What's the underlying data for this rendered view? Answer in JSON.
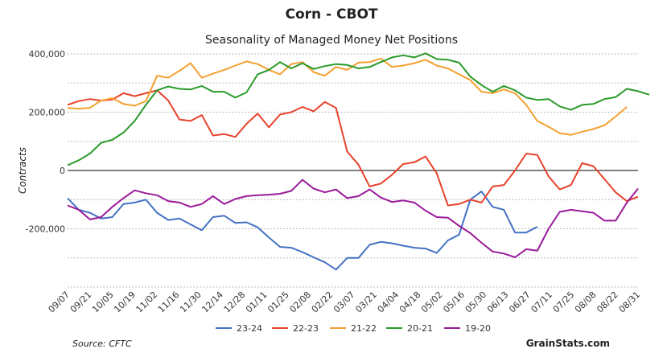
{
  "chart_data": {
    "type": "line",
    "title": "Corn - CBOT",
    "subtitle": "Seasonality of Managed Money Net Positions",
    "ylabel": "Contracts",
    "xlabel": "",
    "ylim": [
      -400000,
      400000
    ],
    "y_ticks": [
      400000,
      200000,
      0,
      -200000
    ],
    "y_tick_labels": [
      "400,000",
      "200,000",
      "0",
      "-200,000"
    ],
    "x_tick_labels": [
      "09/07",
      "09/21",
      "10/05",
      "10/19",
      "11/02",
      "11/16",
      "11/30",
      "12/14",
      "12/28",
      "01/11",
      "01/25",
      "02/08",
      "02/22",
      "03/07",
      "03/21",
      "04/04",
      "04/18",
      "05/02",
      "05/16",
      "05/30",
      "06/13",
      "06/27",
      "07/11",
      "07/25",
      "08/08",
      "08/22",
      "08/31"
    ],
    "x_count": 52,
    "series": [
      {
        "name": "23-24",
        "color": "#4472c4",
        "values": [
          -95000,
          -135000,
          -145000,
          -165000,
          -160000,
          -115000,
          -110000,
          -100000,
          -145000,
          -170000,
          -165000,
          -185000,
          -205000,
          -160000,
          -155000,
          -180000,
          -178000,
          -195000,
          -230000,
          -262000,
          -265000,
          -280000,
          -298000,
          -315000,
          -340000,
          -300000,
          -300000,
          -255000,
          -245000,
          -250000,
          -258000,
          -265000,
          -268000,
          -283000,
          -240000,
          -220000,
          -100000,
          -72000,
          -125000,
          -135000,
          -213000,
          -213000,
          -193000
        ]
      },
      {
        "name": "22-23",
        "color": "#e8422c",
        "values": [
          225000,
          238000,
          245000,
          240000,
          243000,
          265000,
          255000,
          265000,
          275000,
          240000,
          175000,
          170000,
          190000,
          120000,
          125000,
          115000,
          160000,
          195000,
          148000,
          192000,
          200000,
          218000,
          203000,
          235000,
          215000,
          65000,
          20000,
          -55000,
          -45000,
          -15000,
          22000,
          28000,
          48000,
          -10000,
          -120000,
          -115000,
          -100000,
          -110000,
          -55000,
          -50000,
          0,
          58000,
          53000,
          -20000,
          -65000,
          -50000,
          25000,
          15000,
          -30000,
          -75000,
          -105000,
          -90000
        ]
      },
      {
        "name": "21-22",
        "color": "#f5a030",
        "values": [
          215000,
          212000,
          215000,
          240000,
          248000,
          228000,
          222000,
          238000,
          325000,
          318000,
          342000,
          368000,
          318000,
          332000,
          345000,
          360000,
          374000,
          365000,
          345000,
          330000,
          365000,
          372000,
          337000,
          325000,
          355000,
          345000,
          370000,
          372000,
          384000,
          355000,
          360000,
          368000,
          380000,
          360000,
          350000,
          330000,
          310000,
          270000,
          265000,
          278000,
          265000,
          225000,
          170000,
          150000,
          128000,
          122000,
          133000,
          142000,
          155000,
          185000,
          218000
        ]
      },
      {
        "name": "20-21",
        "color": "#2a9a2a",
        "values": [
          18000,
          35000,
          58000,
          95000,
          105000,
          130000,
          170000,
          225000,
          275000,
          288000,
          280000,
          278000,
          290000,
          270000,
          270000,
          250000,
          268000,
          330000,
          345000,
          372000,
          350000,
          368000,
          348000,
          358000,
          365000,
          362000,
          350000,
          355000,
          372000,
          388000,
          395000,
          388000,
          402000,
          382000,
          380000,
          370000,
          322000,
          293000,
          270000,
          290000,
          275000,
          250000,
          242000,
          245000,
          220000,
          208000,
          225000,
          228000,
          245000,
          252000,
          280000,
          272000,
          260000
        ]
      },
      {
        "name": "19-20",
        "color": "#9a1a9a",
        "values": [
          -120000,
          -135000,
          -168000,
          -160000,
          -125000,
          -95000,
          -68000,
          -78000,
          -85000,
          -105000,
          -110000,
          -125000,
          -115000,
          -88000,
          -115000,
          -98000,
          -88000,
          -85000,
          -83000,
          -80000,
          -70000,
          -32000,
          -62000,
          -75000,
          -65000,
          -95000,
          -88000,
          -65000,
          -93000,
          -108000,
          -103000,
          -110000,
          -138000,
          -160000,
          -162000,
          -190000,
          -215000,
          -248000,
          -278000,
          -285000,
          -298000,
          -270000,
          -275000,
          -200000,
          -142000,
          -135000,
          -140000,
          -145000,
          -172000,
          -172000,
          -110000,
          -62000
        ]
      }
    ],
    "legend_position": "bottom-center",
    "grid": true
  },
  "footer": {
    "source": "Source: CFTC",
    "brand": "GrainStats.com"
  }
}
